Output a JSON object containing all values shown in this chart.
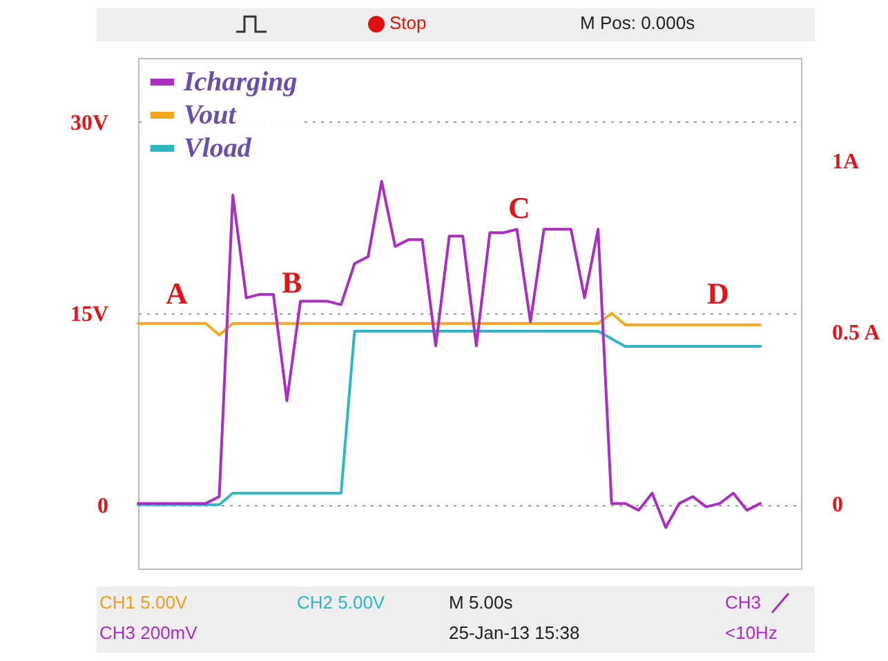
{
  "chart_data": {
    "type": "line",
    "categories": [
      null,
      null,
      null,
      null,
      null,
      null,
      null,
      null,
      null,
      null,
      null,
      null,
      null,
      null,
      null,
      null,
      null,
      null,
      null,
      null,
      null,
      null,
      null,
      null,
      null,
      null,
      null,
      null,
      null,
      null,
      null,
      null,
      null,
      null,
      null,
      null,
      null,
      null,
      null,
      null,
      null,
      null,
      null,
      null,
      null,
      null,
      null,
      null,
      null,
      null
    ],
    "series": [
      {
        "name": "Icharging",
        "color": "#a82fc0",
        "axis": "y2",
        "values": [
          0,
          0,
          0,
          0,
          0,
          0,
          0.02,
          0.9,
          0.6,
          0.61,
          0.61,
          0.3,
          0.59,
          0.59,
          0.59,
          0.58,
          0.7,
          0.72,
          0.94,
          0.75,
          0.77,
          0.77,
          0.46,
          0.78,
          0.78,
          0.46,
          0.79,
          0.79,
          0.8,
          0.53,
          0.8,
          0.8,
          0.8,
          0.6,
          0.8,
          0,
          0,
          -0.02,
          0.03,
          -0.07,
          0,
          0.02,
          -0.01,
          0,
          0.03,
          -0.02,
          0,
          null,
          null,
          null
        ]
      },
      {
        "name": "Vout",
        "color": "#f2a81d",
        "values": [
          14.2,
          14.2,
          14.2,
          14.2,
          14.2,
          14.2,
          13.3,
          14.2,
          14.2,
          14.2,
          14.2,
          14.2,
          14.2,
          14.2,
          14.2,
          14.2,
          14.2,
          14.2,
          14.2,
          14.2,
          14.2,
          14.2,
          14.2,
          14.2,
          14.2,
          14.2,
          14.2,
          14.2,
          14.2,
          14.2,
          14.2,
          14.2,
          14.2,
          14.2,
          14.2,
          15,
          14.1,
          14.1,
          14.1,
          14.1,
          14.1,
          14.1,
          14.1,
          14.1,
          14.1,
          14.1,
          14.1,
          null,
          null,
          null
        ]
      },
      {
        "name": "Vload",
        "color": "#2fb7c4",
        "values": [
          0,
          0,
          0,
          0,
          0,
          0,
          0,
          0.9,
          0.9,
          0.9,
          0.9,
          0.9,
          0.9,
          0.9,
          0.9,
          0.9,
          13.6,
          13.6,
          13.6,
          13.6,
          13.6,
          13.6,
          13.6,
          13.6,
          13.6,
          13.6,
          13.6,
          13.6,
          13.6,
          13.6,
          13.6,
          13.6,
          13.6,
          13.6,
          13.6,
          13,
          12.4,
          12.4,
          12.4,
          12.4,
          12.4,
          12.4,
          12.4,
          12.4,
          12.4,
          12.4,
          12.4,
          null,
          null,
          null
        ]
      }
    ],
    "ylim": [
      -5,
      35
    ],
    "yticks": [
      0,
      {
        "value": 15,
        "label": "15V"
      },
      {
        "value": 30,
        "label": "30V"
      }
    ],
    "y2lim": [
      -0.19,
      1.3
    ],
    "y2ticks": [
      0,
      {
        "value": 0.5,
        "label": "0.5 A"
      },
      {
        "value": 1,
        "label": "1A"
      }
    ],
    "grid": "y",
    "legend": "top left",
    "annotations": [
      "A",
      "B",
      "C",
      "D",
      "Stop",
      "M Pos: 0.000s",
      "CH1 5.00V",
      "CH2 5.00V",
      "M 5.00s",
      "CH3",
      "CH3 200mV",
      "25-Jan-13 15:38",
      "<10Hz"
    ]
  }
}
